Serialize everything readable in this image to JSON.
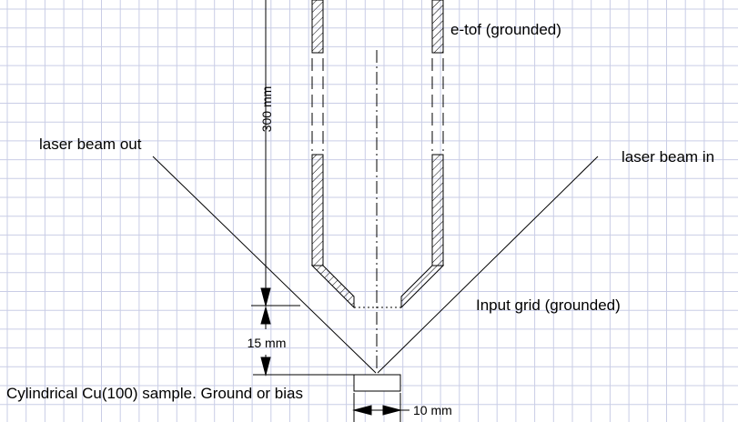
{
  "labels": {
    "etof": "e-tof (grounded)",
    "laser_out": "laser beam out",
    "laser_in": "laser beam in",
    "input_grid": "Input grid (grounded)",
    "sample": "Cylindrical Cu(100) sample. Ground or bias"
  },
  "dimensions": {
    "distance_tof": "300 mm",
    "distance_grid": "15 mm",
    "sample_width": "10 mm"
  },
  "colors": {
    "grid": "#c9cde6",
    "line": "#000000",
    "background": "#ffffff"
  }
}
